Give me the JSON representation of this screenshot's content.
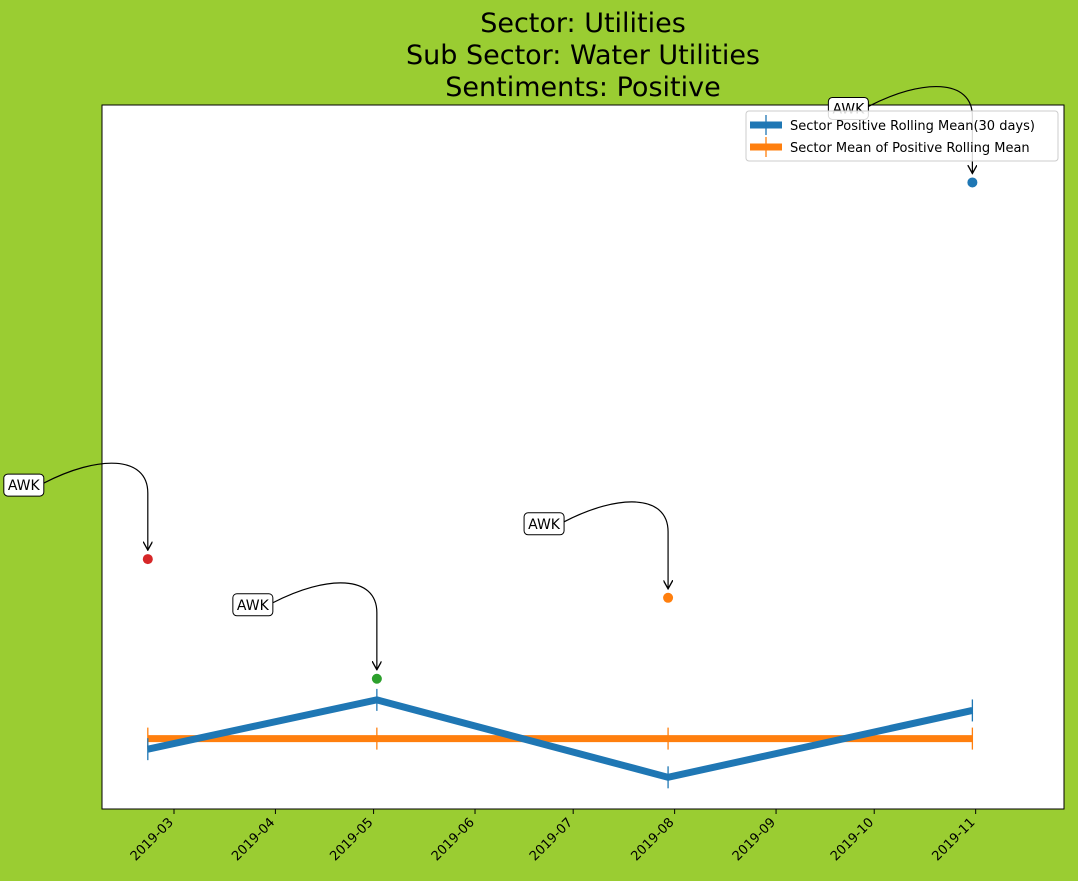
{
  "chart_data": {
    "type": "line",
    "title": [
      "Sector:  Utilities",
      "Sub Sector:  Water Utilities",
      "Sentiments:  Positive"
    ],
    "xlabel": "",
    "ylabel": "",
    "x_ticks": [
      "2019-03",
      "2019-04",
      "2019-05",
      "2019-06",
      "2019-07",
      "2019-08",
      "2019-09",
      "2019-10",
      "2019-11"
    ],
    "x_range": [
      "2019-02-07",
      "2019-11-28"
    ],
    "y_range": [
      0,
      1
    ],
    "y_ticks_shown": false,
    "grid": false,
    "legend_position": "top-right",
    "series": [
      {
        "name": "Sector Positive Rolling Mean(30 days)",
        "color": "#1f77b4",
        "x": [
          "2019-02-21",
          "2019-05-02",
          "2019-07-30",
          "2019-10-31"
        ],
        "y": [
          0.085,
          0.155,
          0.045,
          0.14
        ]
      },
      {
        "name": "Sector Mean of Positive Rolling Mean",
        "color": "#ff7f0e",
        "x": [
          "2019-02-21",
          "2019-05-02",
          "2019-07-30",
          "2019-10-31"
        ],
        "y": [
          0.1,
          0.1,
          0.1,
          0.1
        ]
      }
    ],
    "points": [
      {
        "x": "2019-02-21",
        "y": 0.355,
        "color": "#d62728",
        "label": "AWK"
      },
      {
        "x": "2019-05-02",
        "y": 0.185,
        "color": "#2ca02c",
        "label": "AWK"
      },
      {
        "x": "2019-07-30",
        "y": 0.3,
        "color": "#ff7f0e",
        "label": "AWK"
      },
      {
        "x": "2019-10-31",
        "y": 0.89,
        "color": "#1f77b4",
        "label": "AWK"
      }
    ]
  }
}
